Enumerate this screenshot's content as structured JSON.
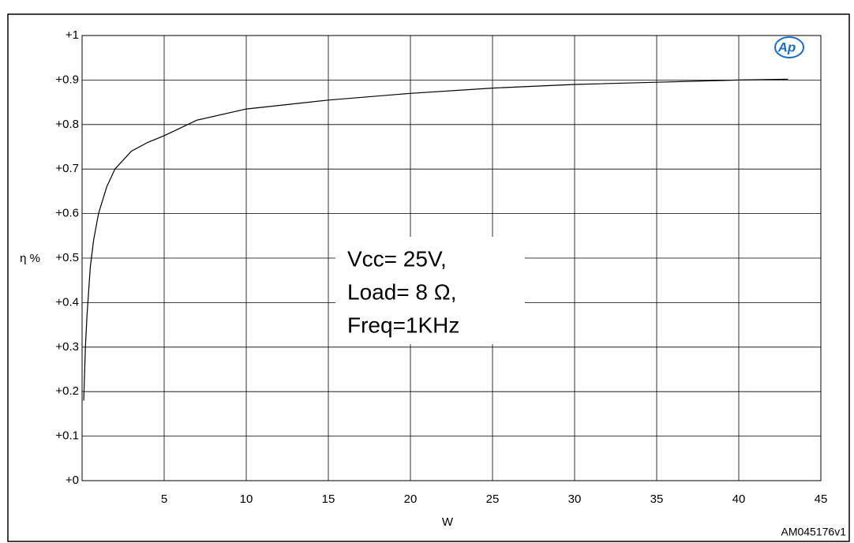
{
  "chart_data": {
    "type": "line",
    "x_label": "W",
    "y_label": "η %",
    "footnote": "AM045176v1",
    "annotation": [
      "Vcc= 25V,",
      "Load= 8 Ω,",
      "Freq=1KHz"
    ],
    "xlim": [
      0,
      45
    ],
    "xticks": [
      5,
      10,
      15,
      20,
      25,
      30,
      35,
      40,
      45
    ],
    "ylim": [
      0,
      1
    ],
    "yticks": [
      {
        "value": 0,
        "label": "+0"
      },
      {
        "value": 0.1,
        "label": "+0.1"
      },
      {
        "value": 0.2,
        "label": "+0.2"
      },
      {
        "value": 0.3,
        "label": "+0.3"
      },
      {
        "value": 0.4,
        "label": "+0.4"
      },
      {
        "value": 0.5,
        "label": "+0.5"
      },
      {
        "value": 0.6,
        "label": "+0.6"
      },
      {
        "value": 0.7,
        "label": "+0.7"
      },
      {
        "value": 0.8,
        "label": "+0.8"
      },
      {
        "value": 0.9,
        "label": "+0.9"
      },
      {
        "value": 1,
        "label": "+1"
      }
    ],
    "grid": true,
    "series": [
      {
        "color": "#000000",
        "x": [
          0.1,
          0.2,
          0.3,
          0.5,
          0.7,
          1,
          1.5,
          2,
          3,
          4,
          5,
          7,
          10,
          15,
          20,
          25,
          30,
          35,
          40,
          43
        ],
        "values": [
          0.18,
          0.3,
          0.37,
          0.48,
          0.54,
          0.6,
          0.66,
          0.7,
          0.74,
          0.76,
          0.775,
          0.81,
          0.835,
          0.855,
          0.87,
          0.882,
          0.89,
          0.895,
          0.9,
          0.902
        ]
      }
    ]
  }
}
